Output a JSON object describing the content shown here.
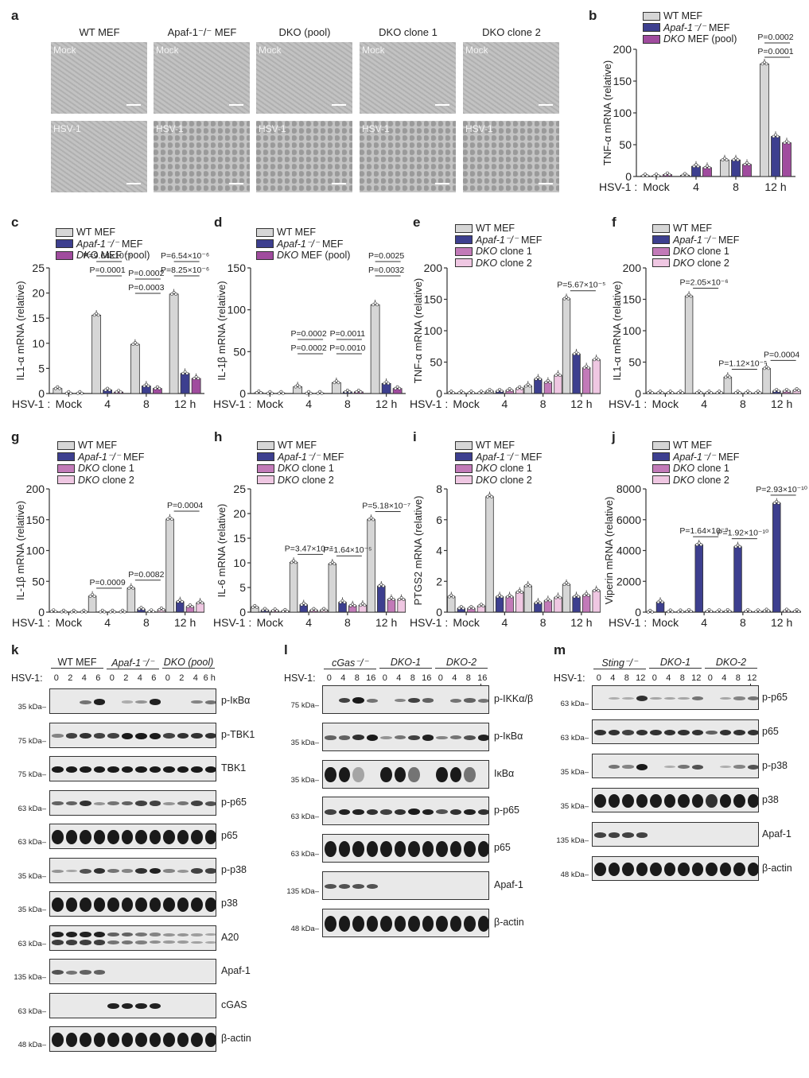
{
  "panels": {
    "a": {
      "letter": "a",
      "columns": [
        "WT MEF",
        "Apaf-1⁻/⁻ MEF",
        "DKO (pool)",
        "DKO clone 1",
        "DKO clone 2"
      ],
      "rows": [
        "Mock",
        "HSV-1"
      ]
    }
  },
  "colors": {
    "wt": "#d6d6d6",
    "apaf": "#3d3f8f",
    "dko_pool": "#a04c9e",
    "dko_c1": "#c27ab8",
    "dko_c2": "#efc7e2",
    "stroke": "#333333"
  },
  "legend_labels": {
    "wt": "WT MEF",
    "apaf": "Apaf-1⁻/⁻ MEF",
    "dko_pool": "DKO MEF (pool)",
    "dko_c1": "DKO clone 1",
    "dko_c2": "DKO clone 2"
  },
  "x_prefix": "HSV-1 :",
  "chart_data": [
    {
      "panel": "b",
      "type": "bar",
      "ylabel": "TNF-α mRNA (relative)",
      "categories": [
        "Mock",
        "4",
        "8",
        "12 h"
      ],
      "ylim": [
        0,
        200
      ],
      "yticks": [
        0,
        50,
        100,
        150,
        200
      ],
      "series": [
        {
          "name": "WT MEF",
          "values": [
            1,
            2,
            26,
            177
          ]
        },
        {
          "name": "Apaf-1-/- MEF",
          "values": [
            1,
            16,
            26,
            63
          ]
        },
        {
          "name": "DKO MEF (pool)",
          "values": [
            3,
            14,
            19,
            53
          ]
        }
      ],
      "annotations": [
        "P=0.0002",
        "P=0.0001"
      ]
    },
    {
      "panel": "c",
      "type": "bar",
      "ylabel": "IL1-α mRNA (relative)",
      "categories": [
        "Mock",
        "4",
        "8",
        "12 h"
      ],
      "ylim": [
        0,
        25
      ],
      "yticks": [
        0,
        5,
        10,
        15,
        20,
        25
      ],
      "series": [
        {
          "name": "WT MEF",
          "values": [
            1.0,
            15.6,
            9.8,
            19.8
          ]
        },
        {
          "name": "Apaf-1-/- MEF",
          "values": [
            0.05,
            0.7,
            1.5,
            4.0
          ]
        },
        {
          "name": "DKO MEF (pool)",
          "values": [
            0.05,
            0.3,
            1.0,
            3.0
          ]
        }
      ],
      "annotations": [
        "P=9.64×10⁻⁵",
        "P=0.0001",
        "P=0.0002",
        "P=0.0003",
        "P=6.54×10⁻⁶",
        "P=8.25×10⁻⁶"
      ]
    },
    {
      "panel": "d",
      "type": "bar",
      "ylabel": "IL-1β mRNA (relative)",
      "categories": [
        "Mock",
        "4",
        "8",
        "12 h"
      ],
      "ylim": [
        0,
        150
      ],
      "yticks": [
        0,
        50,
        100,
        150
      ],
      "series": [
        {
          "name": "WT MEF",
          "values": [
            1,
            8,
            13,
            106
          ]
        },
        {
          "name": "Apaf-1-/- MEF",
          "values": [
            0.3,
            0.3,
            2,
            12
          ]
        },
        {
          "name": "DKO MEF (pool)",
          "values": [
            0.3,
            0.3,
            2,
            6
          ]
        }
      ],
      "annotations": [
        "P=0.0002",
        "P=0.0002",
        "P=0.0011",
        "P=0.0010",
        "P=0.0025",
        "P=0.0032"
      ]
    },
    {
      "panel": "e",
      "type": "bar",
      "ylabel": "TNF-α mRNA (relative)",
      "categories": [
        "Mock",
        "4",
        "8",
        "12 h"
      ],
      "ylim": [
        0,
        200
      ],
      "yticks": [
        0,
        50,
        100,
        150,
        200
      ],
      "series": [
        {
          "name": "WT MEF",
          "values": [
            1,
            4,
            12,
            151
          ]
        },
        {
          "name": "Apaf-1-/- MEF",
          "values": [
            1,
            4,
            23,
            63
          ]
        },
        {
          "name": "DKO clone 1",
          "values": [
            1,
            5,
            18,
            41
          ]
        },
        {
          "name": "DKO clone 2",
          "values": [
            1,
            8,
            29,
            54
          ]
        }
      ],
      "annotations": [
        "P=5.67×10⁻⁵"
      ]
    },
    {
      "panel": "f",
      "type": "bar",
      "ylabel": "IL1-α mRNA (relative)",
      "categories": [
        "Mock",
        "4",
        "8",
        "12 h"
      ],
      "ylim": [
        0,
        200
      ],
      "yticks": [
        0,
        50,
        100,
        150,
        200
      ],
      "series": [
        {
          "name": "WT MEF",
          "values": [
            1,
            155,
            26,
            40
          ]
        },
        {
          "name": "Apaf-1-/- MEF",
          "values": [
            1,
            1,
            1,
            4
          ]
        },
        {
          "name": "DKO clone 1",
          "values": [
            1,
            1,
            1,
            4
          ]
        },
        {
          "name": "DKO clone 2",
          "values": [
            1,
            1,
            1,
            5
          ]
        }
      ],
      "annotations": [
        "P=2.05×10⁻⁶",
        "P=1.12×10⁻⁵",
        "P=0.0004"
      ]
    },
    {
      "panel": "g",
      "type": "bar",
      "ylabel": "IL-1β mRNA (relative)",
      "categories": [
        "Mock",
        "4",
        "8",
        "12 h"
      ],
      "ylim": [
        0,
        200
      ],
      "yticks": [
        0,
        50,
        100,
        150,
        200
      ],
      "series": [
        {
          "name": "WT MEF",
          "values": [
            1,
            26,
            39,
            151
          ]
        },
        {
          "name": "Apaf-1-/- MEF",
          "values": [
            0.5,
            0.5,
            5,
            17
          ]
        },
        {
          "name": "DKO clone 1",
          "values": [
            0.5,
            0.5,
            1,
            9
          ]
        },
        {
          "name": "DKO clone 2",
          "values": [
            0.5,
            0.5,
            4,
            15
          ]
        }
      ],
      "annotations": [
        "P=0.0009",
        "P=0.0082",
        "P=0.0004"
      ]
    },
    {
      "panel": "h",
      "type": "bar",
      "ylabel": "IL-6 mRNA (relative)",
      "categories": [
        "Mock",
        "4",
        "8",
        "12 h"
      ],
      "ylim": [
        0,
        25
      ],
      "yticks": [
        0,
        5,
        10,
        15,
        20,
        25
      ],
      "series": [
        {
          "name": "WT MEF",
          "values": [
            1.0,
            10.1,
            9.8,
            18.8
          ]
        },
        {
          "name": "Apaf-1-/- MEF",
          "values": [
            0.4,
            1.5,
            2.0,
            5.3
          ]
        },
        {
          "name": "DKO clone 1",
          "values": [
            0.3,
            0.4,
            1.3,
            2.6
          ]
        },
        {
          "name": "DKO clone 2",
          "values": [
            0.2,
            0.4,
            1.4,
            2.6
          ]
        }
      ],
      "annotations": [
        "P=3.47×10⁻⁷",
        "P=1.64×10⁻⁵",
        "P=5.18×10⁻⁷"
      ]
    },
    {
      "panel": "i",
      "type": "bar",
      "ylabel": "PTGS2 mRNA (relative)",
      "categories": [
        "Mock",
        "4",
        "8",
        "12 h"
      ],
      "ylim": [
        0,
        8
      ],
      "yticks": [
        0,
        2,
        4,
        6,
        8
      ],
      "series": [
        {
          "name": "WT MEF",
          "values": [
            1.0,
            7.5,
            1.7,
            1.8
          ]
        },
        {
          "name": "Apaf-1-/- MEF",
          "values": [
            0.25,
            1.0,
            0.6,
            1.0
          ]
        },
        {
          "name": "DKO clone 1",
          "values": [
            0.25,
            1.0,
            0.75,
            1.1
          ]
        },
        {
          "name": "DKO clone 2",
          "values": [
            0.4,
            1.3,
            0.95,
            1.4
          ]
        }
      ],
      "annotations": []
    },
    {
      "panel": "j",
      "type": "bar",
      "ylabel": "Viperin mRNA (relative)",
      "categories": [
        "Mock",
        "4",
        "8",
        "12 h"
      ],
      "ylim": [
        0,
        8000
      ],
      "yticks": [
        0,
        2000,
        4000,
        6000,
        8000
      ],
      "series": [
        {
          "name": "WT MEF",
          "values": [
            10,
            60,
            60,
            80
          ]
        },
        {
          "name": "Apaf-1-/- MEF",
          "values": [
            650,
            4380,
            4250,
            7080
          ]
        },
        {
          "name": "DKO clone 1",
          "values": [
            30,
            60,
            60,
            80
          ]
        },
        {
          "name": "DKO clone 2",
          "values": [
            30,
            40,
            40,
            50
          ]
        }
      ],
      "annotations": [
        "P=1.64×10⁻⁹",
        "P=1.92×10⁻¹⁰",
        "P=2.93×10⁻¹⁰"
      ]
    }
  ],
  "blots": {
    "k": {
      "letter": "k",
      "groups": [
        "WT MEF",
        "Apaf-1⁻/⁻",
        "DKO (pool)"
      ],
      "times": [
        "0",
        "2",
        "4",
        "6",
        "0",
        "2",
        "4",
        "6",
        "0",
        "2",
        "4",
        "6 h"
      ],
      "rows": [
        {
          "name": "p-IκBα",
          "kda": "35 kDa",
          "bands": [
            0,
            0,
            0.4,
            0.9,
            0,
            0.05,
            0.2,
            0.9,
            0,
            0,
            0.3,
            0.4
          ]
        },
        {
          "name": "p-TBK1",
          "kda": "75 kDa",
          "bands": [
            0.3,
            0.7,
            0.8,
            0.7,
            0.7,
            1,
            1,
            1,
            0.7,
            0.8,
            0.8,
            0.8
          ]
        },
        {
          "name": "TBK1",
          "kda": "75 kDa",
          "bands": [
            1,
            1,
            1,
            1,
            1,
            1,
            1,
            1,
            1,
            1,
            1,
            1
          ]
        },
        {
          "name": "p-p65",
          "kda": "63 kDa",
          "bands": [
            0.5,
            0.5,
            0.8,
            0.2,
            0.4,
            0.5,
            0.7,
            0.7,
            0.2,
            0.4,
            0.7,
            0.6
          ]
        },
        {
          "name": "p65",
          "kda": "63 kDa",
          "bands": [
            1,
            1,
            1,
            1,
            1,
            1,
            1,
            1,
            1,
            1,
            1,
            1
          ],
          "heavy": true
        },
        {
          "name": "p-p38",
          "kda": "35 kDa",
          "bands": [
            0.2,
            0.1,
            0.6,
            0.8,
            0.4,
            0.3,
            0.8,
            0.9,
            0.3,
            0.2,
            0.7,
            0.7
          ]
        },
        {
          "name": "p38",
          "kda": "35 kDa",
          "bands": [
            1,
            1,
            1,
            1,
            1,
            1,
            1,
            1,
            1,
            1,
            1,
            1
          ],
          "heavy": true
        },
        {
          "name": "A20",
          "kda": "63 kDa",
          "bands": [
            0.9,
            0.9,
            0.9,
            0.9,
            0.5,
            0.5,
            0.4,
            0.3,
            0.2,
            0.2,
            0.15,
            0.1
          ],
          "double": true
        },
        {
          "name": "Apaf-1",
          "kda": "135 kDa",
          "bands": [
            0.6,
            0.4,
            0.5,
            0.5,
            0,
            0,
            0,
            0,
            0,
            0,
            0,
            0
          ]
        },
        {
          "name": "cGAS",
          "kda": "63 kDa",
          "bands": [
            0,
            0,
            0,
            0,
            0.9,
            0.9,
            0.9,
            0.9,
            0,
            0,
            0,
            0
          ]
        },
        {
          "name": "β-actin",
          "kda": "48 kDa",
          "bands": [
            1,
            1,
            1,
            1,
            1,
            1,
            1,
            1,
            1,
            1,
            1,
            1
          ],
          "heavy": true
        }
      ]
    },
    "l": {
      "letter": "l",
      "groups": [
        "cGas⁻/⁻",
        "DKO-1",
        "DKO-2"
      ],
      "times": [
        "0",
        "4",
        "8",
        "16",
        "0",
        "4",
        "8",
        "16",
        "0",
        "4",
        "8",
        "16 h"
      ],
      "rows": [
        {
          "name": "p-IKKα/β",
          "kda": "75 kDa",
          "bands": [
            0,
            0.7,
            1,
            0.4,
            0,
            0.3,
            0.7,
            0.5,
            0,
            0.4,
            0.5,
            0.4
          ]
        },
        {
          "name": "p-IκBα",
          "kda": "35 kDa",
          "bands": [
            0.5,
            0.5,
            0.8,
            1,
            0.2,
            0.4,
            0.7,
            0.9,
            0.3,
            0.4,
            0.6,
            0.9
          ]
        },
        {
          "name": "IκBα",
          "kda": "35 kDa",
          "bands": [
            1,
            1,
            0.1,
            0,
            1,
            1,
            0.4,
            0,
            1,
            1,
            0.4,
            0
          ],
          "heavy": true
        },
        {
          "name": "p-p65",
          "kda": "63 kDa",
          "bands": [
            0.7,
            0.9,
            0.9,
            0.8,
            0.7,
            0.8,
            1,
            0.9,
            0.6,
            0.8,
            0.9,
            0.8
          ]
        },
        {
          "name": "p65",
          "kda": "63 kDa",
          "bands": [
            1,
            1,
            1,
            1,
            1,
            1,
            1,
            1,
            1,
            1,
            1,
            1
          ],
          "heavy": true
        },
        {
          "name": "Apaf-1",
          "kda": "135 kDa",
          "bands": [
            0.6,
            0.6,
            0.6,
            0.6,
            0,
            0,
            0,
            0,
            0,
            0,
            0,
            0
          ]
        },
        {
          "name": "β-actin",
          "kda": "48 kDa",
          "bands": [
            1,
            1,
            1,
            1,
            1,
            1,
            1,
            1,
            1,
            1,
            1,
            1
          ],
          "heavy": true
        }
      ]
    },
    "m": {
      "letter": "m",
      "groups": [
        "Sting⁻/⁻",
        "DKO-1",
        "DKO-2"
      ],
      "times": [
        "0",
        "4",
        "8",
        "12",
        "0",
        "4",
        "8",
        "12",
        "0",
        "4",
        "8",
        "12 h"
      ],
      "rows": [
        {
          "name": "p-p65",
          "kda": "63 kDa",
          "bands": [
            0,
            0.05,
            0.05,
            0.8,
            0.1,
            0.1,
            0.1,
            0.4,
            0,
            0.1,
            0.3,
            0.4
          ]
        },
        {
          "name": "p65",
          "kda": "63 kDa",
          "bands": [
            0.8,
            0.8,
            0.7,
            0.8,
            0.8,
            0.8,
            0.8,
            0.8,
            0.5,
            0.8,
            0.8,
            0.8
          ]
        },
        {
          "name": "p-p38",
          "kda": "35 kDa",
          "bands": [
            0,
            0.4,
            0.3,
            1,
            0,
            0.05,
            0.4,
            0.6,
            0,
            0.05,
            0.3,
            0.6
          ]
        },
        {
          "name": "p38",
          "kda": "35 kDa",
          "bands": [
            1,
            1,
            1,
            1,
            1,
            1,
            1,
            1,
            0.8,
            1,
            1,
            1
          ],
          "heavy": true
        },
        {
          "name": "Apaf-1",
          "kda": "135 kDa",
          "bands": [
            0.7,
            0.7,
            0.7,
            0.7,
            0,
            0,
            0,
            0,
            0,
            0,
            0,
            0
          ]
        },
        {
          "name": "β-actin",
          "kda": "48 kDa",
          "bands": [
            1,
            1,
            1,
            1,
            1,
            1,
            1,
            1,
            1,
            1,
            1,
            1
          ],
          "heavy": true
        }
      ]
    }
  },
  "hsv_label": "HSV-1:"
}
